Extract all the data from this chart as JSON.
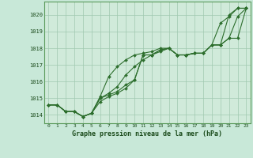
{
  "title": "Graphe pression niveau de la mer (hPa)",
  "background_color": "#c8e8d8",
  "plot_bg_color": "#d0eada",
  "grid_color": "#a0c8b0",
  "line_color": "#2d6e2d",
  "marker_color": "#2d6e2d",
  "xlim": [
    -0.5,
    23.5
  ],
  "ylim": [
    1013.5,
    1020.8
  ],
  "yticks": [
    1014,
    1015,
    1016,
    1017,
    1018,
    1019,
    1020
  ],
  "xticks": [
    0,
    1,
    2,
    3,
    4,
    5,
    6,
    7,
    8,
    9,
    10,
    11,
    12,
    13,
    14,
    15,
    16,
    17,
    18,
    19,
    20,
    21,
    22,
    23
  ],
  "series": [
    [
      1014.6,
      1014.6,
      1014.2,
      1014.2,
      1013.9,
      1014.1,
      1015.0,
      1015.2,
      1015.4,
      1015.8,
      1016.1,
      1017.6,
      1017.6,
      1017.9,
      1018.0,
      1017.6,
      1017.6,
      1017.7,
      1017.7,
      1018.2,
      1018.2,
      1018.6,
      1019.9,
      1020.4
    ],
    [
      1014.6,
      1014.6,
      1014.2,
      1014.2,
      1013.9,
      1014.1,
      1015.0,
      1015.3,
      1015.7,
      1016.4,
      1016.9,
      1017.3,
      1017.6,
      1017.8,
      1018.0,
      1017.6,
      1017.6,
      1017.7,
      1017.7,
      1018.2,
      1018.2,
      1020.0,
      1020.4,
      1020.4
    ],
    [
      1014.6,
      1014.6,
      1014.2,
      1014.2,
      1013.9,
      1014.1,
      1014.8,
      1015.1,
      1015.3,
      1015.6,
      1016.1,
      1017.6,
      1017.6,
      1017.9,
      1018.0,
      1017.6,
      1017.6,
      1017.7,
      1017.7,
      1018.2,
      1019.5,
      1019.9,
      1020.4,
      1020.4
    ],
    [
      1014.6,
      1014.6,
      1014.2,
      1014.2,
      1013.9,
      1014.1,
      1015.1,
      1016.3,
      1016.9,
      1017.3,
      1017.6,
      1017.7,
      1017.8,
      1018.0,
      1018.0,
      1017.6,
      1017.6,
      1017.7,
      1017.7,
      1018.2,
      1018.2,
      1018.6,
      1018.6,
      1020.4
    ]
  ]
}
